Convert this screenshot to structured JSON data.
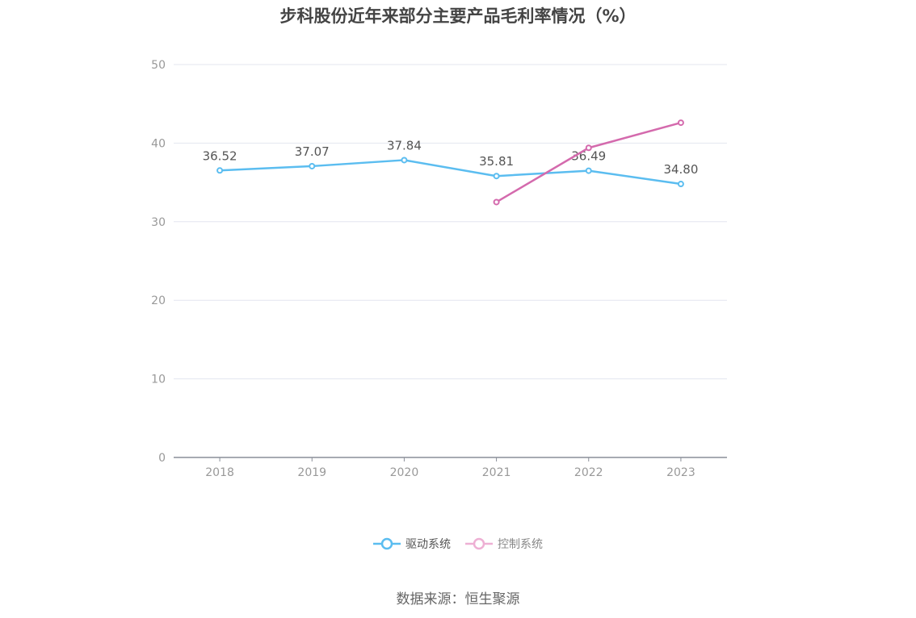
{
  "title": "步科股份近年来部分主要产品毛利率情况（%）",
  "source": "数据来源：恒生聚源",
  "chart_data": {
    "type": "line",
    "title": "步科股份近年来部分主要产品毛利率情况（%）",
    "categories": [
      "2018",
      "2019",
      "2020",
      "2021",
      "2022",
      "2023"
    ],
    "ylim": [
      0,
      50
    ],
    "yticks": [
      "0",
      "10",
      "20",
      "30",
      "40",
      "50"
    ],
    "grid": true,
    "legend_position": "bottom",
    "series": [
      {
        "name": "驱动系统",
        "color": "#5bbdf0",
        "values": [
          36.52,
          37.07,
          37.84,
          35.81,
          36.49,
          34.8
        ],
        "labels": [
          "36.52",
          "37.07",
          "37.84",
          "35.81",
          "36.49",
          "34.80"
        ]
      },
      {
        "name": "控制系统",
        "color": "#d46aad",
        "values": [
          null,
          null,
          null,
          32.5,
          39.4,
          42.6
        ],
        "labels": []
      }
    ]
  }
}
